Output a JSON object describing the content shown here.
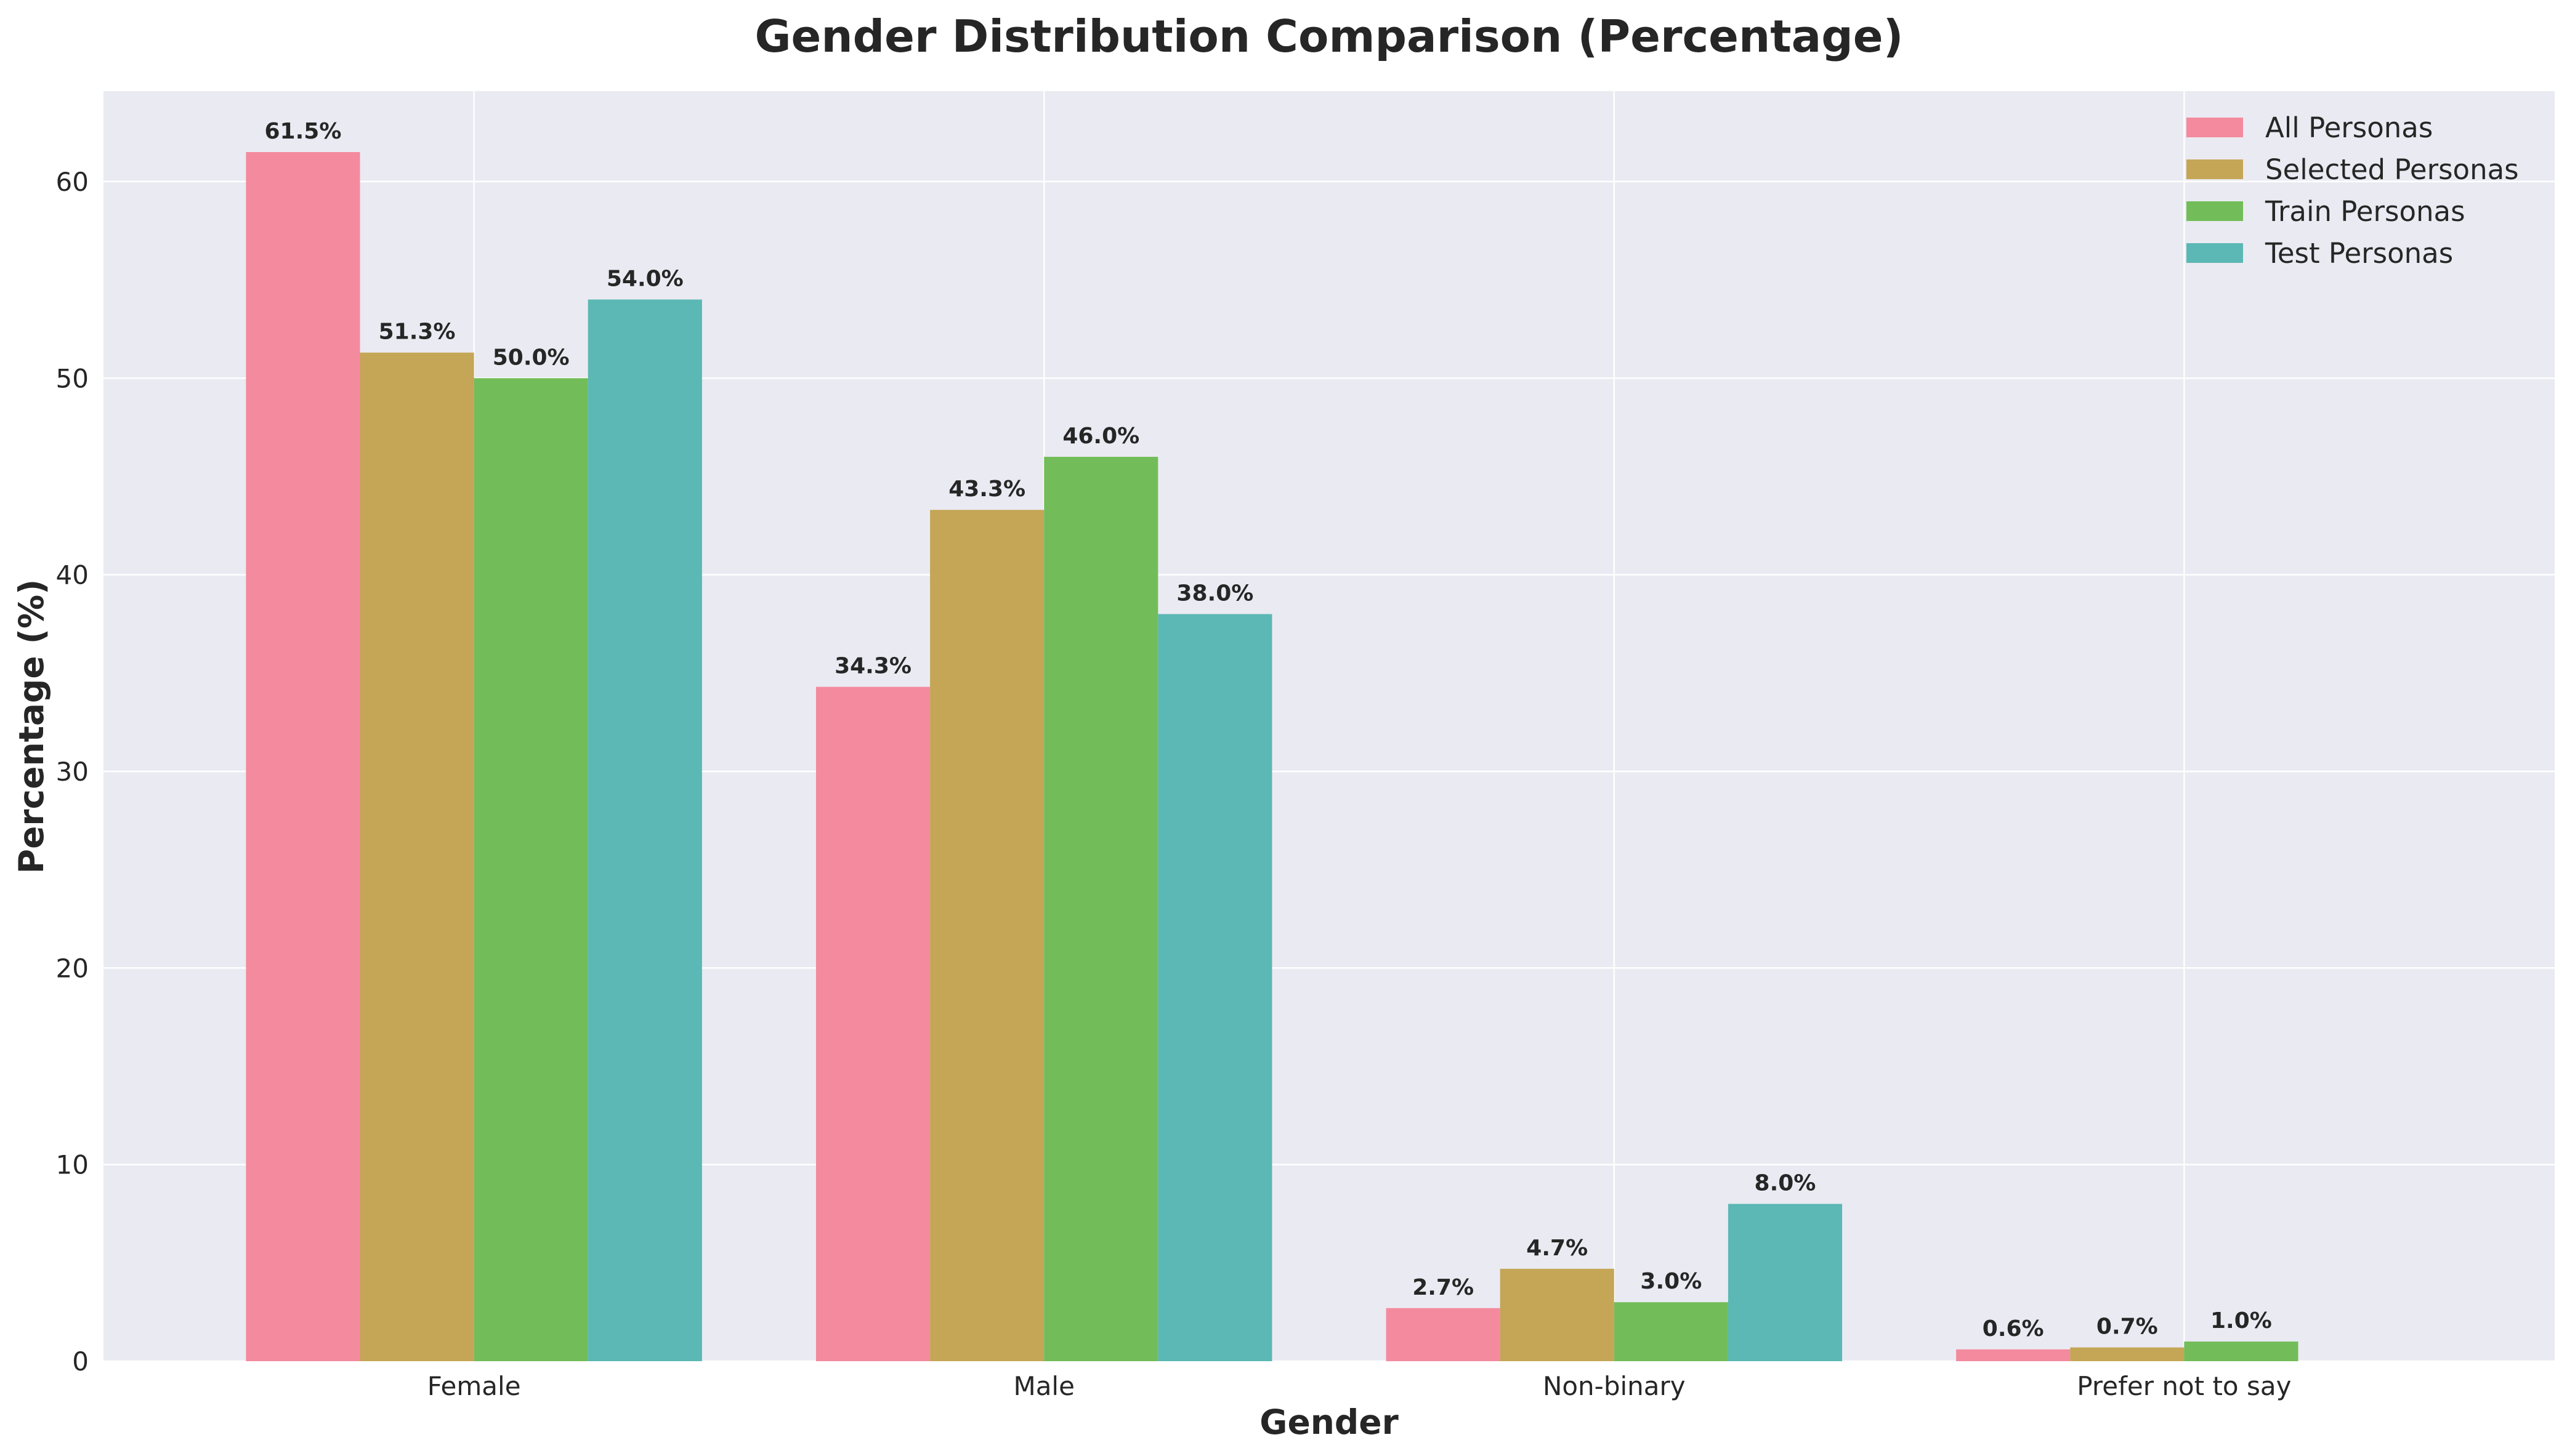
{
  "chart_data": {
    "type": "bar",
    "title": "Gender Distribution Comparison (Percentage)",
    "xlabel": "Gender",
    "ylabel": "Percentage (%)",
    "ylim": [
      0,
      64.6
    ],
    "yticks": [
      0,
      10,
      20,
      30,
      40,
      50,
      60
    ],
    "grid": true,
    "legend_position": "top-right",
    "categories": [
      "Female",
      "Male",
      "Non-binary",
      "Prefer not to say"
    ],
    "series": [
      {
        "name": "All Personas",
        "color": "#f48a9e",
        "values": [
          61.5,
          34.3,
          2.7,
          0.6
        ],
        "labels": [
          "61.5%",
          "34.3%",
          "2.7%",
          "0.6%"
        ]
      },
      {
        "name": "Selected Personas",
        "color": "#c4a656",
        "values": [
          51.3,
          43.3,
          4.7,
          0.7
        ],
        "labels": [
          "51.3%",
          "43.3%",
          "4.7%",
          "0.7%"
        ]
      },
      {
        "name": "Train Personas",
        "color": "#72bd59",
        "values": [
          50.0,
          46.0,
          3.0,
          1.0
        ],
        "labels": [
          "50.0%",
          "46.0%",
          "3.0%",
          "1.0%"
        ]
      },
      {
        "name": "Test Personas",
        "color": "#5bb8b4",
        "values": [
          54.0,
          38.0,
          8.0,
          null
        ],
        "labels": [
          "54.0%",
          "38.0%",
          "8.0%",
          null
        ]
      }
    ],
    "plot_background": "#eaeaf2",
    "grid_color": "#ffffff",
    "text_color": "#262626"
  }
}
